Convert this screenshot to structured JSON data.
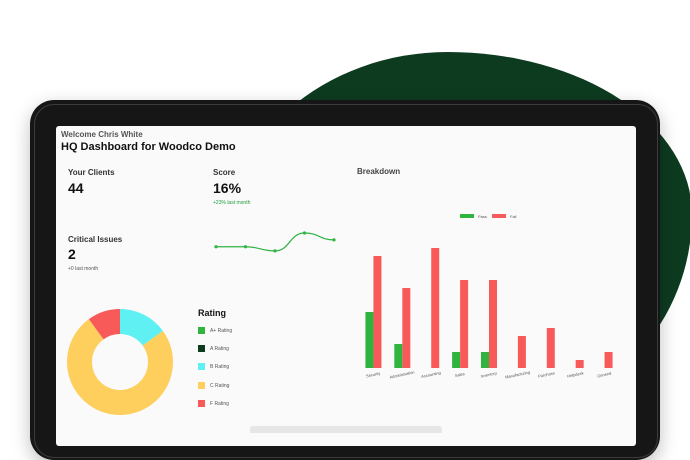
{
  "header": {
    "welcome": "Welcome Chris White",
    "title": "HQ Dashboard for Woodco Demo"
  },
  "kpis": {
    "clients": {
      "label": "Your Clients",
      "value": "44"
    },
    "score": {
      "label": "Score",
      "value": "16%",
      "sub": "+23% last month"
    },
    "issues": {
      "label": "Critical Issues",
      "value": "2",
      "sub": "+0 last month"
    }
  },
  "breakdown": {
    "title": "Breakdown"
  },
  "rating": {
    "title": "Rating",
    "items": [
      {
        "label": "A+ Rating",
        "color": "#2fb43f"
      },
      {
        "label": "A Rating",
        "color": "#0c3b1d"
      },
      {
        "label": "B Rating",
        "color": "#5ff0f4"
      },
      {
        "label": "C Rating",
        "color": "#ffcf5e"
      },
      {
        "label": "F Rating",
        "color": "#f85a5a"
      }
    ]
  },
  "chart_data": [
    {
      "type": "line",
      "points": [
        6,
        6,
        3,
        16,
        11
      ],
      "color": "#2fb43f"
    },
    {
      "type": "bar",
      "categories": [
        "Security",
        "Administration",
        "Accounting",
        "Sales",
        "Inventory",
        "Manufacturing",
        "Purchase",
        "Helpdesk",
        "General"
      ],
      "series": [
        {
          "name": "Pass",
          "color": "#2fb43f",
          "values": [
            14,
            6,
            0,
            4,
            4,
            0,
            0,
            0,
            0
          ]
        },
        {
          "name": "Fail",
          "color": "#f85a5a",
          "values": [
            28,
            20,
            30,
            22,
            22,
            8,
            10,
            2,
            4
          ]
        }
      ],
      "ylim": [
        0,
        32
      ],
      "legend": "top-center"
    },
    {
      "type": "pie",
      "donut": true,
      "labels": [
        "A+ Rating",
        "A Rating",
        "B Rating",
        "C Rating",
        "F Rating"
      ],
      "values": [
        0,
        0,
        15,
        75,
        10
      ],
      "colors": [
        "#2fb43f",
        "#0c3b1d",
        "#5ff0f4",
        "#ffcf5e",
        "#f85a5a"
      ]
    }
  ]
}
